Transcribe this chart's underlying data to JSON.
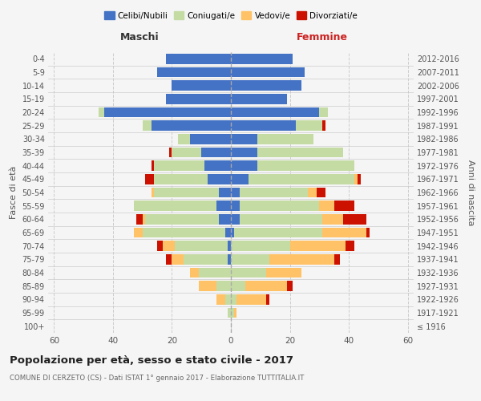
{
  "age_groups": [
    "100+",
    "95-99",
    "90-94",
    "85-89",
    "80-84",
    "75-79",
    "70-74",
    "65-69",
    "60-64",
    "55-59",
    "50-54",
    "45-49",
    "40-44",
    "35-39",
    "30-34",
    "25-29",
    "20-24",
    "15-19",
    "10-14",
    "5-9",
    "0-4"
  ],
  "birth_years": [
    "≤ 1916",
    "1917-1921",
    "1922-1926",
    "1927-1931",
    "1932-1936",
    "1937-1941",
    "1942-1946",
    "1947-1951",
    "1952-1956",
    "1957-1961",
    "1962-1966",
    "1967-1971",
    "1972-1976",
    "1977-1981",
    "1982-1986",
    "1987-1991",
    "1992-1996",
    "1997-2001",
    "2002-2006",
    "2007-2011",
    "2012-2016"
  ],
  "male_celibi": [
    0,
    0,
    0,
    0,
    0,
    1,
    1,
    2,
    4,
    5,
    4,
    8,
    9,
    10,
    14,
    27,
    43,
    22,
    20,
    25,
    22
  ],
  "male_coniugati": [
    0,
    1,
    2,
    5,
    11,
    15,
    18,
    28,
    25,
    28,
    22,
    18,
    17,
    10,
    4,
    3,
    2,
    0,
    0,
    0,
    0
  ],
  "male_vedovi": [
    0,
    0,
    3,
    6,
    3,
    4,
    4,
    3,
    1,
    0,
    1,
    0,
    0,
    0,
    0,
    0,
    0,
    0,
    0,
    0,
    0
  ],
  "male_divorziati": [
    0,
    0,
    0,
    0,
    0,
    2,
    2,
    0,
    2,
    0,
    0,
    3,
    1,
    1,
    0,
    0,
    0,
    0,
    0,
    0,
    0
  ],
  "female_nubili": [
    0,
    0,
    0,
    0,
    0,
    0,
    0,
    1,
    3,
    3,
    3,
    6,
    9,
    9,
    9,
    22,
    30,
    19,
    24,
    25,
    21
  ],
  "female_coniugate": [
    0,
    1,
    2,
    5,
    12,
    13,
    20,
    30,
    28,
    27,
    23,
    36,
    33,
    29,
    19,
    9,
    3,
    0,
    0,
    0,
    0
  ],
  "female_vedove": [
    0,
    1,
    10,
    14,
    12,
    22,
    19,
    15,
    7,
    5,
    3,
    1,
    0,
    0,
    0,
    0,
    0,
    0,
    0,
    0,
    0
  ],
  "female_divorziate": [
    0,
    0,
    1,
    2,
    0,
    2,
    3,
    1,
    8,
    7,
    3,
    1,
    0,
    0,
    0,
    1,
    0,
    0,
    0,
    0,
    0
  ],
  "color_celibi": "#4472c4",
  "color_coniugati": "#c5dba4",
  "color_vedovi": "#ffc266",
  "color_divorziati": "#cc1100",
  "xlim": 62,
  "title": "Popolazione per età, sesso e stato civile - 2017",
  "subtitle": "COMUNE DI CERZETO (CS) - Dati ISTAT 1° gennaio 2017 - Elaborazione TUTTITALIA.IT",
  "ylabel_left": "Fasce di età",
  "ylabel_right": "Anni di nascita",
  "label_maschi": "Maschi",
  "label_femmine": "Femmine",
  "legend_labels": [
    "Celibi/Nubili",
    "Coniugati/e",
    "Vedovi/e",
    "Divorziati/e"
  ],
  "bg_color": "#f5f5f5",
  "grid_color": "#cccccc"
}
